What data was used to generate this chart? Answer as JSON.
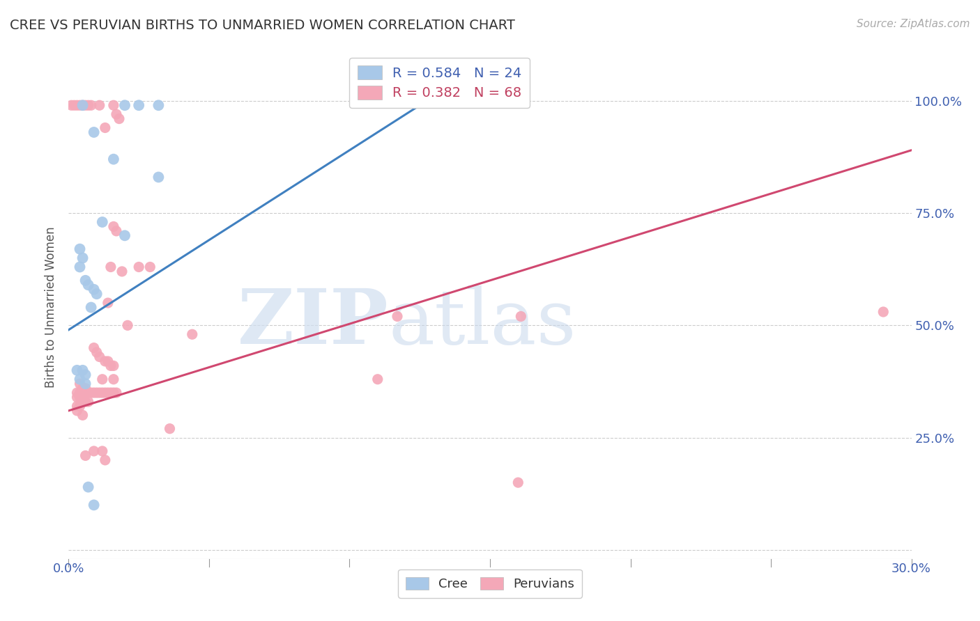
{
  "title": "CREE VS PERUVIAN BIRTHS TO UNMARRIED WOMEN CORRELATION CHART",
  "source": "Source: ZipAtlas.com",
  "ylabel": "Births to Unmarried Women",
  "xlim": [
    0.0,
    0.3
  ],
  "ylim": [
    -0.02,
    1.1
  ],
  "ytick_labels": [
    "",
    "25.0%",
    "50.0%",
    "75.0%",
    "100.0%"
  ],
  "ytick_values": [
    0.0,
    0.25,
    0.5,
    0.75,
    1.0
  ],
  "xtick_labels": [
    "0.0%",
    "",
    "",
    "",
    "",
    "",
    "30.0%"
  ],
  "xtick_values": [
    0.0,
    0.05,
    0.1,
    0.15,
    0.2,
    0.25,
    0.3
  ],
  "legend_entry1": "R = 0.584   N = 24",
  "legend_entry2": "R = 0.382   N = 68",
  "cree_color": "#a8c8e8",
  "peruvian_color": "#f4a8b8",
  "line_cree_color": "#4080c0",
  "line_peruvian_color": "#d04870",
  "watermark_zip": "ZIP",
  "watermark_atlas": "atlas",
  "cree_points": [
    [
      0.005,
      0.99
    ],
    [
      0.02,
      0.99
    ],
    [
      0.025,
      0.99
    ],
    [
      0.032,
      0.99
    ],
    [
      0.009,
      0.93
    ],
    [
      0.016,
      0.87
    ],
    [
      0.032,
      0.83
    ],
    [
      0.012,
      0.73
    ],
    [
      0.02,
      0.7
    ],
    [
      0.004,
      0.67
    ],
    [
      0.005,
      0.65
    ],
    [
      0.004,
      0.63
    ],
    [
      0.006,
      0.6
    ],
    [
      0.007,
      0.59
    ],
    [
      0.009,
      0.58
    ],
    [
      0.01,
      0.57
    ],
    [
      0.008,
      0.54
    ],
    [
      0.003,
      0.4
    ],
    [
      0.005,
      0.4
    ],
    [
      0.006,
      0.39
    ],
    [
      0.004,
      0.38
    ],
    [
      0.006,
      0.37
    ],
    [
      0.007,
      0.14
    ],
    [
      0.009,
      0.1
    ]
  ],
  "peruvian_points": [
    [
      0.001,
      0.99
    ],
    [
      0.002,
      0.99
    ],
    [
      0.003,
      0.99
    ],
    [
      0.004,
      0.99
    ],
    [
      0.005,
      0.99
    ],
    [
      0.006,
      0.99
    ],
    [
      0.007,
      0.99
    ],
    [
      0.008,
      0.99
    ],
    [
      0.011,
      0.99
    ],
    [
      0.016,
      0.99
    ],
    [
      0.017,
      0.97
    ],
    [
      0.018,
      0.96
    ],
    [
      0.013,
      0.94
    ],
    [
      0.016,
      0.72
    ],
    [
      0.017,
      0.71
    ],
    [
      0.015,
      0.63
    ],
    [
      0.019,
      0.62
    ],
    [
      0.025,
      0.63
    ],
    [
      0.029,
      0.63
    ],
    [
      0.014,
      0.55
    ],
    [
      0.021,
      0.5
    ],
    [
      0.044,
      0.48
    ],
    [
      0.009,
      0.45
    ],
    [
      0.01,
      0.44
    ],
    [
      0.011,
      0.43
    ],
    [
      0.013,
      0.42
    ],
    [
      0.014,
      0.42
    ],
    [
      0.015,
      0.41
    ],
    [
      0.016,
      0.41
    ],
    [
      0.117,
      0.52
    ],
    [
      0.161,
      0.52
    ],
    [
      0.29,
      0.53
    ],
    [
      0.012,
      0.38
    ],
    [
      0.016,
      0.38
    ],
    [
      0.004,
      0.37
    ],
    [
      0.005,
      0.36
    ],
    [
      0.006,
      0.36
    ],
    [
      0.003,
      0.35
    ],
    [
      0.004,
      0.35
    ],
    [
      0.005,
      0.35
    ],
    [
      0.006,
      0.35
    ],
    [
      0.007,
      0.35
    ],
    [
      0.008,
      0.35
    ],
    [
      0.009,
      0.35
    ],
    [
      0.01,
      0.35
    ],
    [
      0.011,
      0.35
    ],
    [
      0.012,
      0.35
    ],
    [
      0.013,
      0.35
    ],
    [
      0.014,
      0.35
    ],
    [
      0.015,
      0.35
    ],
    [
      0.016,
      0.35
    ],
    [
      0.017,
      0.35
    ],
    [
      0.003,
      0.34
    ],
    [
      0.004,
      0.34
    ],
    [
      0.005,
      0.34
    ],
    [
      0.006,
      0.33
    ],
    [
      0.007,
      0.33
    ],
    [
      0.003,
      0.32
    ],
    [
      0.004,
      0.32
    ],
    [
      0.003,
      0.31
    ],
    [
      0.005,
      0.3
    ],
    [
      0.036,
      0.27
    ],
    [
      0.006,
      0.21
    ],
    [
      0.013,
      0.2
    ],
    [
      0.009,
      0.22
    ],
    [
      0.012,
      0.22
    ],
    [
      0.16,
      0.15
    ],
    [
      0.11,
      0.38
    ]
  ],
  "cree_line": [
    [
      0.0,
      0.49
    ],
    [
      0.13,
      1.01
    ]
  ],
  "peruvian_line": [
    [
      0.0,
      0.31
    ],
    [
      0.3,
      0.89
    ]
  ]
}
